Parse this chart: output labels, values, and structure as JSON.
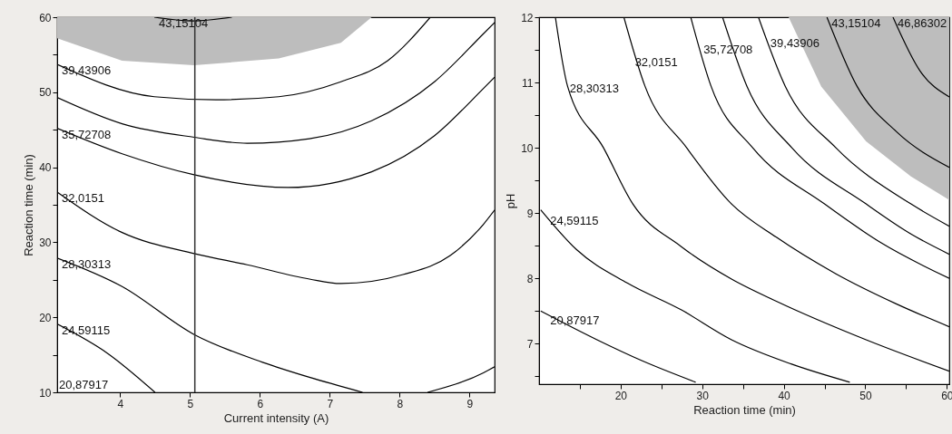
{
  "chart_data": [
    {
      "type": "line",
      "xlabel": "Current intensity (A)",
      "ylabel": "Reaction time (min)",
      "xlim": [
        3.1,
        9.36
      ],
      "ylim": [
        10,
        60
      ],
      "xticks": [
        4,
        5,
        6,
        7,
        8,
        9
      ],
      "yticks": [
        10,
        {
          "value": 15,
          "label": null
        },
        20,
        {
          "value": 25,
          "label": null
        },
        30,
        {
          "value": 35,
          "label": null
        },
        40,
        {
          "value": 45,
          "label": null
        },
        50,
        {
          "value": 55,
          "label": null
        },
        60
      ],
      "series": [
        {
          "type": "area",
          "color": "#bdbdbd",
          "x": [
            3.1,
            3.1,
            4.03,
            5.06,
            6.27,
            7.16,
            7.6
          ],
          "values": [
            60,
            57.2,
            54.2,
            53.6,
            54.5,
            56.6,
            60
          ]
        },
        {
          "color": "#000000",
          "x": [
            4.49,
            5.04,
            5.6
          ],
          "values": [
            60,
            59.5,
            60
          ]
        },
        {
          "color": "#000000",
          "x": [
            3.1,
            4.49,
            5.37,
            6.27,
            7.16,
            7.83,
            8.44
          ],
          "values": [
            53.7,
            49.4,
            49.0,
            49.4,
            51.4,
            54.2,
            60
          ]
        },
        {
          "color": "#000000",
          "x": [
            3.1,
            4.03,
            5.06,
            5.82,
            6.71,
            7.6,
            8.5,
            9.2,
            9.36
          ],
          "values": [
            49.3,
            45.8,
            44.0,
            43.2,
            43.8,
            46.2,
            51.4,
            57.8,
            59.3
          ]
        },
        {
          "color": "#000000",
          "x": [
            3.1,
            4.03,
            5.06,
            6.4,
            7.6,
            8.5,
            9.21,
            9.36
          ],
          "values": [
            45.2,
            41.8,
            39.0,
            37.3,
            39.4,
            44.2,
            50.6,
            52.0
          ]
        },
        {
          "color": "#000000",
          "x": [
            3.1,
            4.03,
            5.06,
            5.82,
            6.71,
            7.16,
            8.05,
            8.72,
            9.2,
            9.36
          ],
          "values": [
            36.7,
            31.3,
            28.5,
            27.0,
            25.1,
            24.5,
            25.7,
            28.2,
            32.4,
            34.3
          ]
        },
        {
          "color": "#000000",
          "x": [
            3.1,
            4.03,
            5.06,
            6.04,
            6.71,
            7.47
          ],
          "values": [
            27.9,
            24.1,
            17.7,
            14.0,
            12.0,
            10.0
          ]
        },
        {
          "color": "#000000",
          "x": [
            8.4,
            9.2,
            9.36
          ],
          "values": [
            10.0,
            12.6,
            13.4
          ]
        },
        {
          "color": "#000000",
          "x": [
            3.1,
            3.82,
            4.5
          ],
          "values": [
            19.1,
            15.2,
            10.0
          ]
        }
      ],
      "ref_lines": [
        {
          "axis": "x",
          "value": 5.07,
          "color": "#333333"
        }
      ],
      "annotations": [
        {
          "text": "43,15104",
          "x": 4.49,
          "y": 60
        },
        {
          "text": "39,43906",
          "x": 3.1,
          "y": 53.7
        },
        {
          "text": "35,72708",
          "x": 3.1,
          "y": 45.2
        },
        {
          "text": "32,0151",
          "x": 3.1,
          "y": 36.7
        },
        {
          "text": "28,30313",
          "x": 3.1,
          "y": 27.9
        },
        {
          "text": "24,59115",
          "x": 3.1,
          "y": 19.1
        },
        "20,87917"
      ]
    },
    {
      "type": "line",
      "xlabel": "Reaction time (min)",
      "ylabel": "pH",
      "xlim": [
        10,
        60.3
      ],
      "ylim": [
        6.38,
        12
      ],
      "xticks": [
        {
          "value": 15,
          "label": null
        },
        20,
        {
          "value": 25,
          "label": null
        },
        30,
        {
          "value": 35,
          "label": null
        },
        40,
        {
          "value": 45,
          "label": null
        },
        50,
        {
          "value": 55,
          "label": null
        },
        60
      ],
      "yticks": [
        {
          "value": 6.5,
          "label": null
        },
        7,
        {
          "value": 7.5,
          "label": null
        },
        8,
        {
          "value": 8.5,
          "label": null
        },
        9,
        {
          "value": 9.5,
          "label": null
        },
        10,
        {
          "value": 10.5,
          "label": null
        },
        11,
        {
          "value": 11.5,
          "label": null
        },
        12
      ],
      "series": [
        {
          "type": "area",
          "color": "#bdbdbd",
          "x": [
            40.6,
            44.6,
            50.1,
            55.6,
            60.3,
            60.3
          ],
          "values": [
            12,
            10.94,
            10.1,
            9.56,
            9.2,
            12
          ]
        },
        {
          "color": "#000000",
          "x": [
            10.2,
            17.1,
            22.6,
            29.2
          ],
          "values": [
            7.5,
            7.06,
            6.74,
            6.41
          ]
        },
        {
          "color": "#000000",
          "x": [
            10.2,
            14.6,
            20.8,
            27.4,
            33.6,
            40.9,
            48.1
          ],
          "values": [
            9.05,
            8.44,
            7.93,
            7.52,
            7.06,
            6.69,
            6.41
          ]
        },
        {
          "color": "#000000",
          "x": [
            12.0,
            13.5,
            17.9,
            21.5,
            27.4,
            33.6,
            39.1,
            50.1,
            60.3
          ],
          "values": [
            12,
            10.94,
            10.0,
            9.14,
            8.49,
            7.99,
            7.65,
            7.06,
            6.58
          ]
        },
        {
          "color": "#000000",
          "x": [
            20.4,
            23.0,
            28.1,
            33.6,
            39.1,
            46.4,
            53.8,
            60.3
          ],
          "values": [
            12,
            10.94,
            10.0,
            9.14,
            8.63,
            8.07,
            7.61,
            7.26
          ]
        },
        {
          "color": "#000000",
          "x": [
            28.6,
            31.1,
            36.2,
            45.0,
            52.0,
            60.3
          ],
          "values": [
            12,
            10.94,
            10.0,
            9.14,
            8.54,
            8.0
          ]
        },
        {
          "color": "#000000",
          "x": [
            32.5,
            35.5,
            41.0,
            50.1,
            55.6,
            60.3
          ],
          "values": [
            12,
            10.94,
            10.0,
            9.14,
            8.68,
            8.37
          ]
        },
        {
          "color": "#000000",
          "x": [
            36.9,
            40.2,
            46.4,
            55.6,
            60.3
          ],
          "values": [
            12,
            10.94,
            10.0,
            9.14,
            8.8
          ]
        },
        {
          "color": "#000000",
          "x": [
            45.3,
            49.0,
            53.8,
            60.3
          ],
          "values": [
            12,
            10.94,
            10.25,
            9.7
          ]
        },
        {
          "color": "#000000",
          "x": [
            53.4,
            56.7,
            60.3
          ],
          "values": [
            12,
            11.18,
            10.78
          ]
        }
      ],
      "annotations": [
        {
          "text": "28,30313",
          "x": 13.2,
          "y": 11.0
        },
        {
          "text": "32,0151",
          "x": 21.2,
          "y": 11.4
        },
        {
          "text": "35,72708",
          "x": 29.6,
          "y": 11.6
        },
        {
          "text": "39,43906",
          "x": 37.8,
          "y": 11.7
        },
        {
          "text": "43,15104",
          "x": 45.3,
          "y": 12
        },
        {
          "text": "46,86302",
          "x": 53.4,
          "y": 12
        },
        {
          "text": "24,59115",
          "x": 10.8,
          "y": 8.97
        },
        {
          "text": "20,87917",
          "x": 10.8,
          "y": 7.45
        }
      ]
    }
  ]
}
